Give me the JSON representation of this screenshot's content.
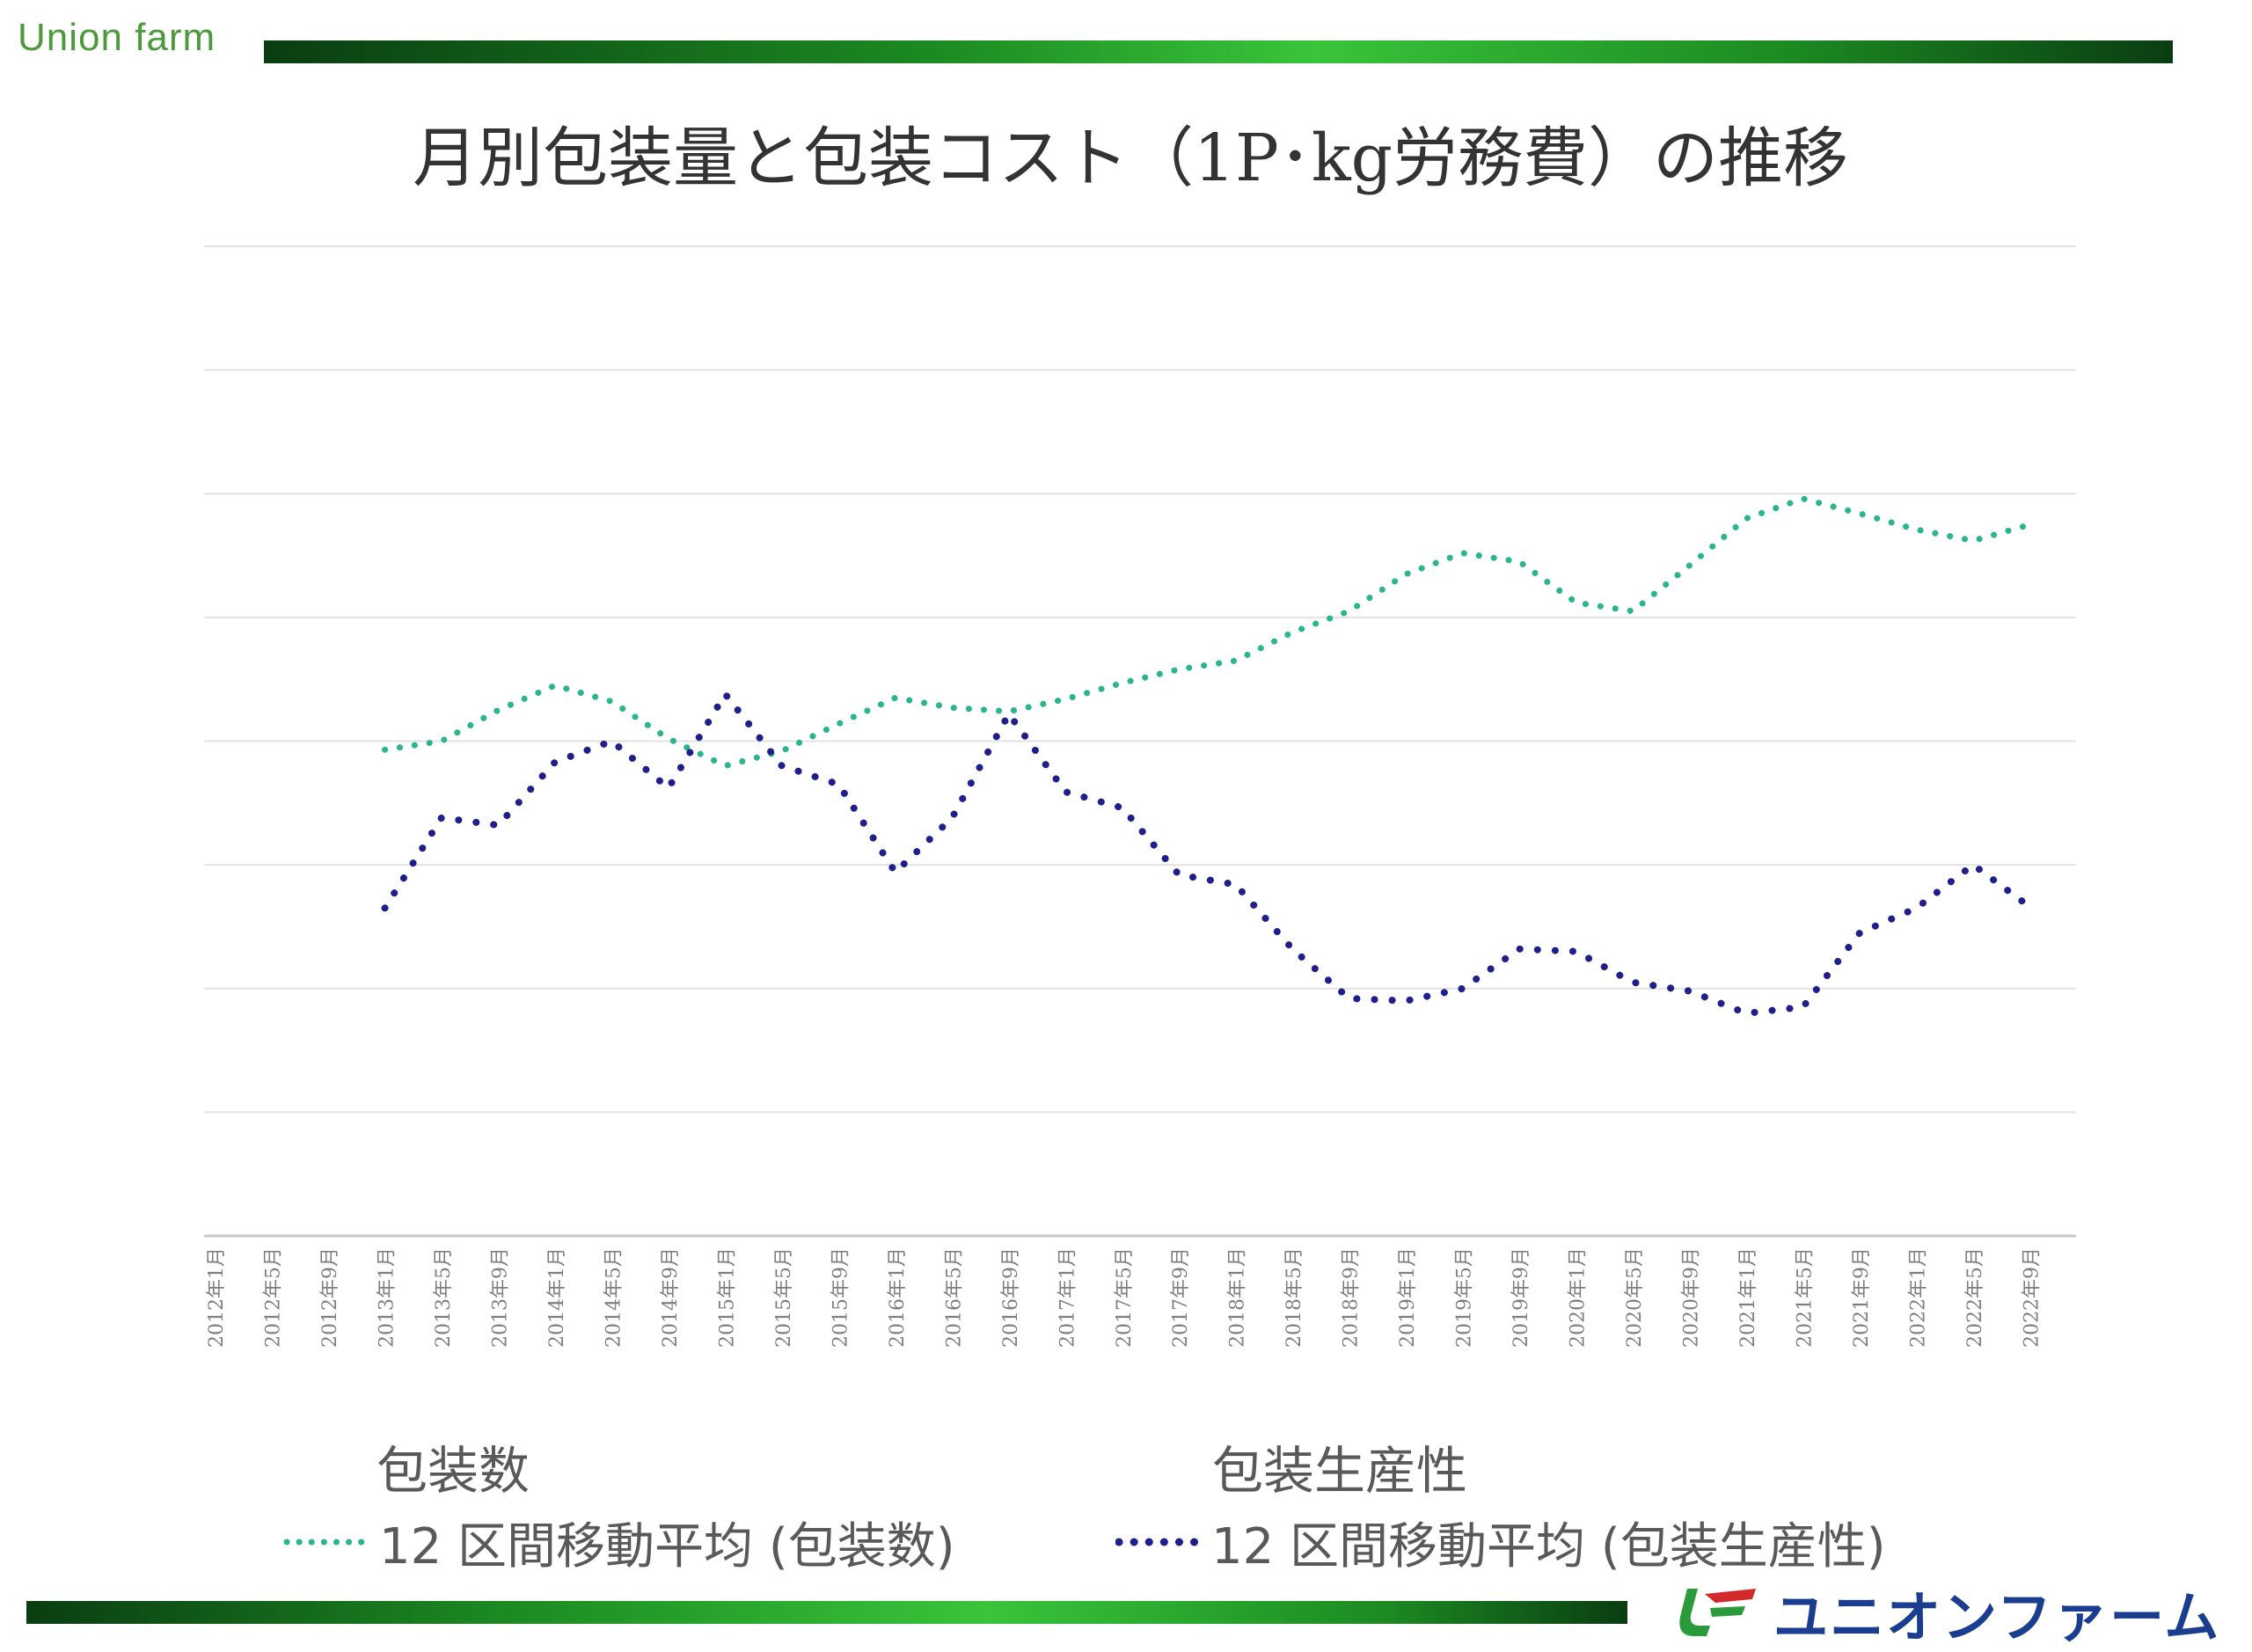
{
  "header": {
    "brand": "Union farm"
  },
  "chart_data": {
    "type": "line",
    "title": "月別包装量と包装コスト（1P･kg労務費）の推移",
    "xlabel": "",
    "ylabel": "",
    "grid": true,
    "legend_position": "bottom",
    "categories": [
      "2012年1月",
      "2012年5月",
      "2012年9月",
      "2013年1月",
      "2013年5月",
      "2013年9月",
      "2014年1月",
      "2014年5月",
      "2014年9月",
      "2015年1月",
      "2015年5月",
      "2015年9月",
      "2016年1月",
      "2016年5月",
      "2016年9月",
      "2017年1月",
      "2017年5月",
      "2017年9月",
      "2018年1月",
      "2018年5月",
      "2018年9月",
      "2019年1月",
      "2019年5月",
      "2019年9月",
      "2020年1月",
      "2020年5月",
      "2020年9月",
      "2021年1月",
      "2021年5月",
      "2021年9月",
      "2022年1月",
      "2022年5月",
      "2022年9月"
    ],
    "series_captions": [
      "包装数",
      "包装生産性"
    ],
    "series": [
      {
        "name": "12 区間移動平均 (包装数)",
        "color": "#2bb58c",
        "values": [
          null,
          null,
          null,
          3.93,
          4.0,
          4.25,
          4.45,
          4.32,
          4.02,
          3.8,
          3.92,
          4.14,
          4.35,
          4.27,
          4.24,
          4.34,
          4.47,
          4.58,
          4.65,
          4.88,
          5.05,
          5.35,
          5.52,
          5.45,
          5.12,
          5.05,
          5.42,
          5.8,
          5.96,
          5.84,
          5.71,
          5.62,
          5.75
        ]
      },
      {
        "name": "12 区間移動平均 (包装生産性)",
        "color": "#1f1f8c",
        "values": [
          null,
          null,
          null,
          2.65,
          3.38,
          3.32,
          3.83,
          4.0,
          3.62,
          4.38,
          3.8,
          3.65,
          2.94,
          3.38,
          4.22,
          3.59,
          3.46,
          2.92,
          2.84,
          2.32,
          1.92,
          1.9,
          2.0,
          2.32,
          2.3,
          2.05,
          1.98,
          1.8,
          1.85,
          2.45,
          2.65,
          3.0,
          2.66
        ]
      }
    ]
  },
  "logo": {
    "text": "ユニオンファーム"
  }
}
